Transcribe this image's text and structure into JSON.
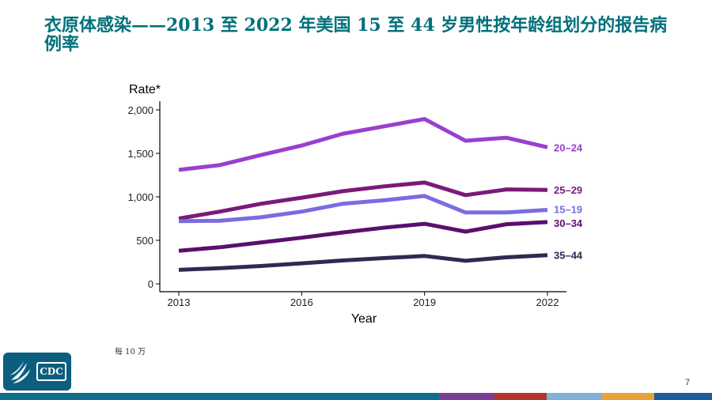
{
  "title": "衣原体感染——2013 至 2022 年美国 15 至 44 岁男性按年龄组划分的报告病例率",
  "footnote": "每 10 万",
  "page_number": "7",
  "logo": {
    "text": "CDC",
    "icon": "hhs-eagle-icon"
  },
  "colors": {
    "title": "#00707a",
    "bottom_bar": [
      "#0f6f8d",
      "#7b3f98",
      "#b1352c",
      "#7fb2d9",
      "#e8a23a",
      "#1d5c99"
    ]
  },
  "chart_data": {
    "type": "line",
    "ylabel": "Rate*",
    "xlabel": "Year",
    "x": [
      2013,
      2014,
      2015,
      2016,
      2017,
      2018,
      2019,
      2020,
      2021,
      2022
    ],
    "xticks": [
      2013,
      2016,
      2019,
      2022
    ],
    "xtick_labels": [
      "2013",
      "2016",
      "2019",
      "2022"
    ],
    "yticks": [
      0,
      500,
      1000,
      1500,
      2000
    ],
    "ytick_labels": [
      "0",
      "500",
      "1,000",
      "1,500",
      "2,000"
    ],
    "xlim": [
      2013,
      2022
    ],
    "ylim": [
      0,
      2000
    ],
    "grid": false,
    "legend": "direct labels at right end of lines",
    "series": [
      {
        "name": "20–24",
        "color": "#9a3fd0",
        "values": [
          1310,
          1365,
          1480,
          1590,
          1725,
          1810,
          1895,
          1645,
          1680,
          1570
        ]
      },
      {
        "name": "25–29",
        "color": "#7a1a78",
        "values": [
          750,
          830,
          920,
          990,
          1065,
          1120,
          1165,
          1020,
          1085,
          1080
        ]
      },
      {
        "name": "15–19",
        "color": "#7a6ce0",
        "values": [
          720,
          725,
          765,
          830,
          920,
          960,
          1010,
          820,
          820,
          850
        ]
      },
      {
        "name": "30–34",
        "color": "#5a0f6e",
        "values": [
          380,
          420,
          475,
          530,
          590,
          645,
          690,
          600,
          685,
          710
        ]
      },
      {
        "name": "35–44",
        "color": "#2e2a54",
        "values": [
          160,
          180,
          205,
          235,
          268,
          295,
          320,
          265,
          305,
          330
        ]
      }
    ]
  }
}
